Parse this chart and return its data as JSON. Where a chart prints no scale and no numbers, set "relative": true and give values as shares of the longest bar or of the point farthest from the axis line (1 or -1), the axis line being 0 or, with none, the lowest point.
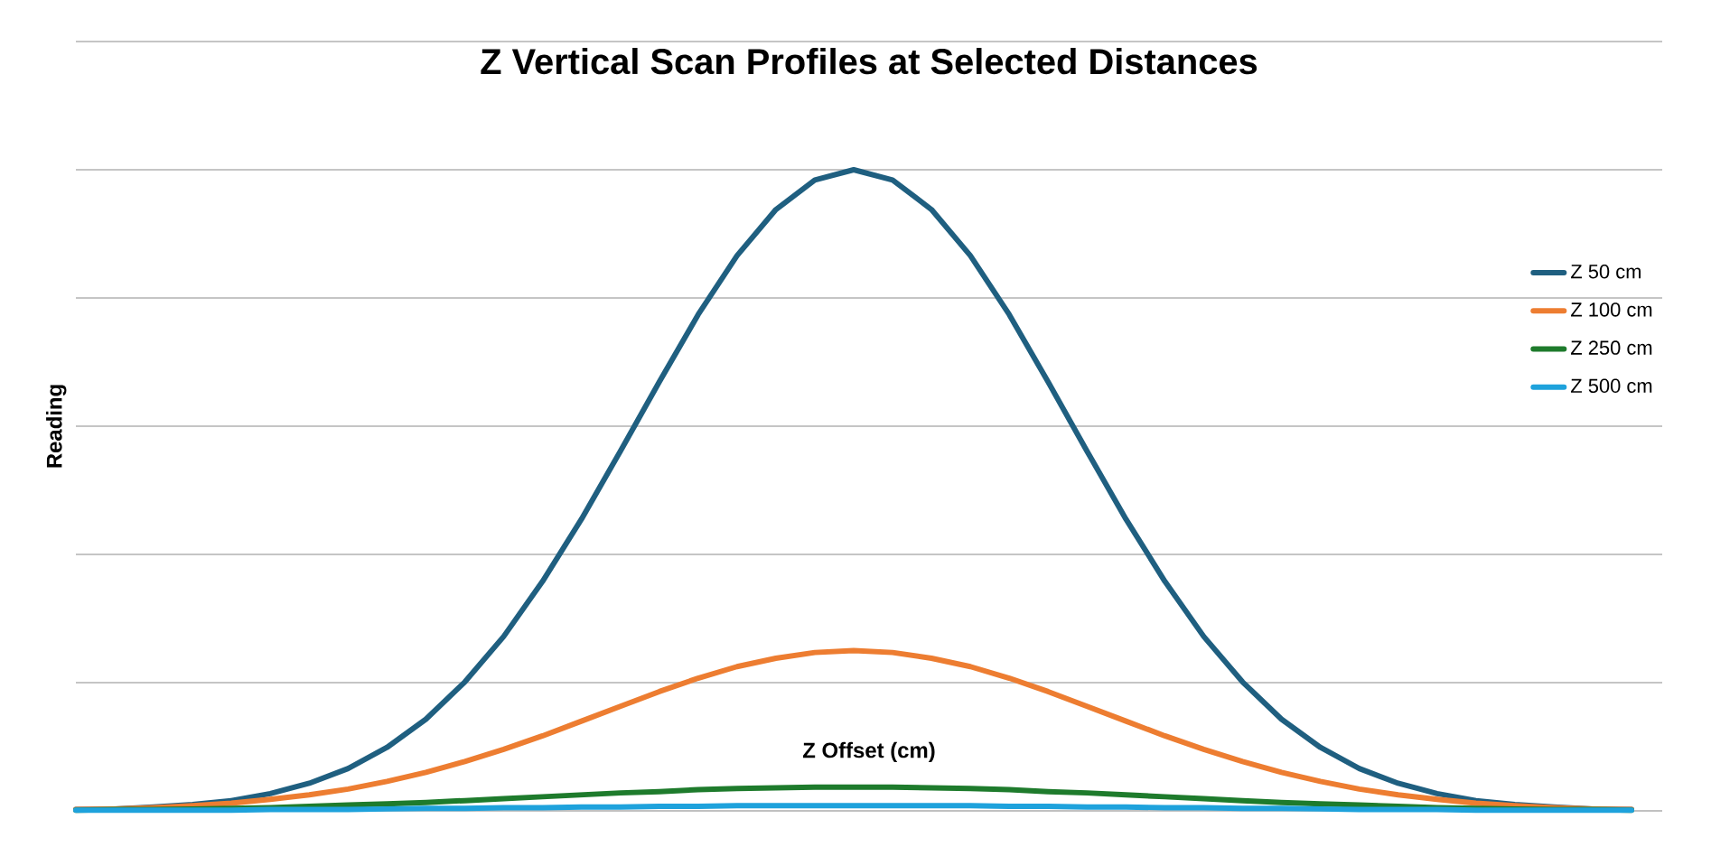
{
  "chart_data": {
    "type": "line",
    "title": "Z Vertical Scan Profiles at Selected Distances",
    "xlabel": "Z Offset (cm)",
    "ylabel": "Reading",
    "relative": true,
    "grid": "y",
    "legend": "right",
    "marker": "none",
    "line_style": "solid",
    "categories": [
      null,
      null,
      null,
      null,
      null,
      null,
      null,
      null,
      null,
      null,
      null,
      null,
      null,
      null,
      null,
      null,
      null,
      null,
      null,
      null,
      null,
      null,
      null,
      null,
      null,
      null,
      null,
      null,
      null,
      null,
      null,
      null,
      null,
      null,
      null,
      null,
      null,
      null,
      null,
      null,
      null
    ],
    "series": [
      {
        "name": "Z 50 cm",
        "color": "#1f5f80",
        "values": [
          0.002,
          0.003,
          0.006,
          0.01,
          0.016,
          0.027,
          0.043,
          0.066,
          0.099,
          0.143,
          0.201,
          0.272,
          0.358,
          0.455,
          0.561,
          0.669,
          0.774,
          0.866,
          0.938,
          0.984,
          1,
          0.984,
          0.938,
          0.866,
          0.774,
          0.669,
          0.561,
          0.455,
          0.358,
          0.272,
          0.201,
          0.143,
          0.099,
          0.066,
          0.043,
          0.027,
          0.016,
          0.01,
          0.006,
          0.003,
          0.002
        ]
      },
      {
        "name": "Z 100 cm",
        "color": "#ed7d31",
        "values": [
          0.002,
          0.003,
          0.005,
          0.008,
          0.012,
          0.018,
          0.025,
          0.034,
          0.046,
          0.06,
          0.077,
          0.096,
          0.117,
          0.14,
          0.163,
          0.186,
          0.207,
          0.225,
          0.238,
          0.247,
          0.25,
          0.247,
          0.238,
          0.225,
          0.207,
          0.186,
          0.163,
          0.14,
          0.117,
          0.096,
          0.077,
          0.06,
          0.046,
          0.034,
          0.025,
          0.018,
          0.012,
          0.008,
          0.005,
          0.003,
          0.002
        ]
      },
      {
        "name": "Z 250 cm",
        "color": "#1e7b2c",
        "values": [
          0.001,
          0.002,
          0.002,
          0.003,
          0.004,
          0.005,
          0.007,
          0.009,
          0.011,
          0.013,
          0.016,
          0.019,
          0.022,
          0.025,
          0.028,
          0.03,
          0.033,
          0.035,
          0.036,
          0.037,
          0.037,
          0.037,
          0.036,
          0.035,
          0.033,
          0.03,
          0.028,
          0.025,
          0.022,
          0.019,
          0.016,
          0.013,
          0.011,
          0.009,
          0.007,
          0.005,
          0.004,
          0.003,
          0.002,
          0.002,
          0.001
        ]
      },
      {
        "name": "Z 500 cm",
        "color": "#1ea2dc",
        "values": [
          0.001,
          0.001,
          0.001,
          0.001,
          0.001,
          0.002,
          0.002,
          0.002,
          0.003,
          0.004,
          0.004,
          0.005,
          0.005,
          0.006,
          0.006,
          0.007,
          0.007,
          0.008,
          0.008,
          0.008,
          0.008,
          0.008,
          0.008,
          0.008,
          0.007,
          0.007,
          0.006,
          0.006,
          0.005,
          0.005,
          0.004,
          0.004,
          0.003,
          0.002,
          0.002,
          0.002,
          0.001,
          0.001,
          0.001,
          0.001,
          0.001
        ]
      }
    ]
  }
}
